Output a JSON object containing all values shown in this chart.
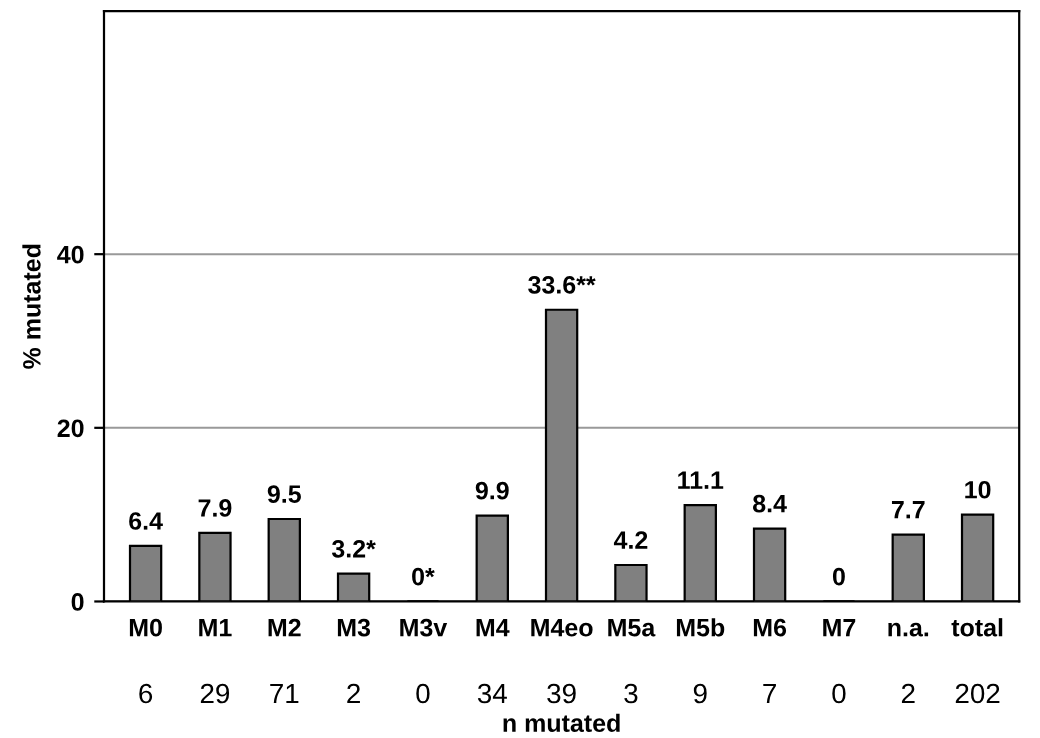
{
  "chart_data": {
    "type": "bar",
    "ylabel": "% mutated",
    "xlabel": "n mutated",
    "categories": [
      "M0",
      "M1",
      "M2",
      "M3",
      "M3v",
      "M4",
      "M4eo",
      "M5a",
      "M5b",
      "M6",
      "M7",
      "n.a.",
      "total"
    ],
    "values": [
      6.4,
      7.9,
      9.5,
      3.2,
      0,
      9.9,
      33.6,
      4.2,
      11.1,
      8.4,
      0,
      7.7,
      10
    ],
    "value_labels": [
      "6.4",
      "7.9",
      "9.5",
      "3.2*",
      "0*",
      "9.9",
      "33.6**",
      "4.2",
      "11.1",
      "8.4",
      "0",
      "7.7",
      "10"
    ],
    "color": "#808080",
    "ylim": [
      0,
      68
    ],
    "yticks": [
      0,
      20,
      40
    ],
    "grid": "y",
    "annotations": [
      "6",
      "29",
      "71",
      "2",
      "0",
      "34",
      "39",
      "3",
      "9",
      "7",
      "0",
      "2",
      "202"
    ]
  }
}
